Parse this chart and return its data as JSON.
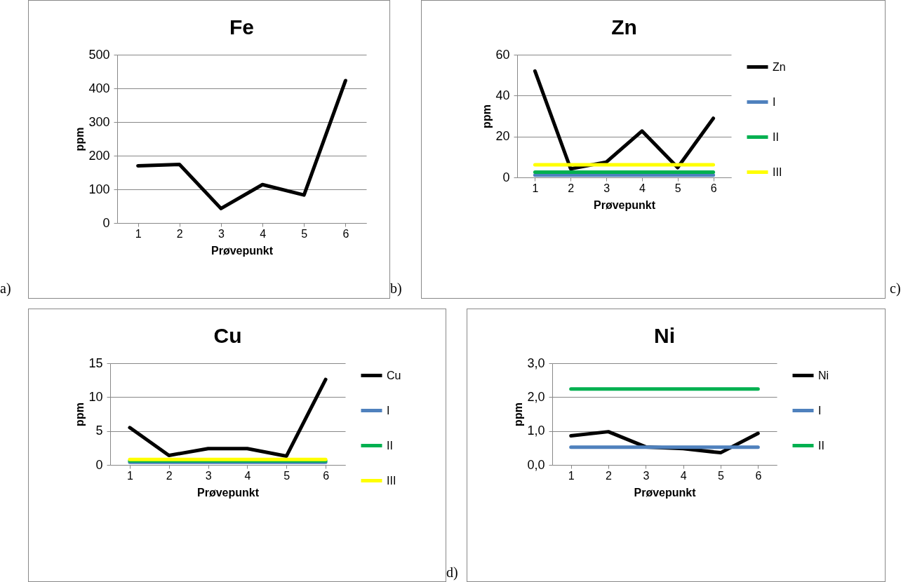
{
  "chart_data": [
    {
      "type": "line",
      "title": "Fe",
      "xlabel": "Prøvepunkt",
      "ylabel": "ppm",
      "categories": [
        "1",
        "2",
        "3",
        "4",
        "5",
        "6"
      ],
      "series": [
        {
          "color": "#000000",
          "values": [
            170,
            174,
            43,
            114,
            83,
            423
          ]
        }
      ],
      "ylim": [
        0,
        500
      ],
      "yticks": [
        0,
        100,
        200,
        300,
        400,
        500
      ],
      "grid": "y",
      "annotations": [
        "a)",
        "b)"
      ]
    },
    {
      "type": "line",
      "title": "Zn",
      "xlabel": "Prøvepunkt",
      "ylabel": "ppm",
      "categories": [
        "1",
        "2",
        "3",
        "4",
        "5",
        "6"
      ],
      "series": [
        {
          "name": "Zn",
          "color": "#000000",
          "values": [
            52,
            4.2,
            7.5,
            22.7,
            4.8,
            28.9
          ]
        },
        {
          "name": "I",
          "color": "#4f81bd",
          "values": [
            1.1,
            1.1,
            1.1,
            1.1,
            1.1,
            1.1
          ]
        },
        {
          "name": "II",
          "color": "#00b050",
          "values": [
            2.6,
            2.6,
            2.6,
            2.6,
            2.6,
            2.6
          ]
        },
        {
          "name": "III",
          "color": "#ffff00",
          "values": [
            6.2,
            6.2,
            6.2,
            6.2,
            6.2,
            6.2
          ]
        }
      ],
      "ylim": [
        0,
        60
      ],
      "yticks": [
        0,
        20,
        40,
        60
      ],
      "grid": "y",
      "legend": "right",
      "annotations": [
        "c)"
      ]
    },
    {
      "type": "line",
      "title": "Cu",
      "xlabel": "Prøvepunkt",
      "ylabel": "ppm",
      "categories": [
        "1",
        "2",
        "3",
        "4",
        "5",
        "6"
      ],
      "series": [
        {
          "name": "Cu",
          "color": "#000000",
          "values": [
            5.5,
            1.4,
            2.4,
            2.4,
            1.3,
            12.6
          ]
        },
        {
          "name": "I",
          "color": "#4f81bd",
          "values": [
            0.4,
            0.4,
            0.4,
            0.4,
            0.4,
            0.4
          ]
        },
        {
          "name": "II",
          "color": "#00b050",
          "values": [
            0.6,
            0.6,
            0.6,
            0.6,
            0.6,
            0.6
          ]
        },
        {
          "name": "III",
          "color": "#ffff00",
          "values": [
            0.8,
            0.8,
            0.8,
            0.8,
            0.8,
            0.8
          ]
        }
      ],
      "ylim": [
        0,
        15
      ],
      "yticks": [
        0,
        5,
        10,
        15
      ],
      "grid": "y",
      "legend": "right",
      "annotations": [
        "d)"
      ]
    },
    {
      "type": "line",
      "title": "Ni",
      "xlabel": "Prøvepunkt",
      "ylabel": "ppm",
      "categories": [
        "1",
        "2",
        "3",
        "4",
        "5",
        "6"
      ],
      "series": [
        {
          "name": "Ni",
          "color": "#000000",
          "values": [
            0.86,
            0.98,
            0.53,
            0.48,
            0.36,
            0.93
          ]
        },
        {
          "name": "I",
          "color": "#4f81bd",
          "values": [
            0.52,
            0.52,
            0.52,
            0.52,
            0.52,
            0.52
          ]
        },
        {
          "name": "II",
          "color": "#00b050",
          "values": [
            2.24,
            2.24,
            2.24,
            2.24,
            2.24,
            2.24
          ]
        }
      ],
      "ylim": [
        0,
        3
      ],
      "yticks": [
        {
          "value": 0,
          "label": "0,0"
        },
        {
          "value": 1,
          "label": "1,0"
        },
        {
          "value": 2,
          "label": "2,0"
        },
        {
          "value": 3,
          "label": "3,0"
        }
      ],
      "grid": "y",
      "legend": "right"
    }
  ]
}
